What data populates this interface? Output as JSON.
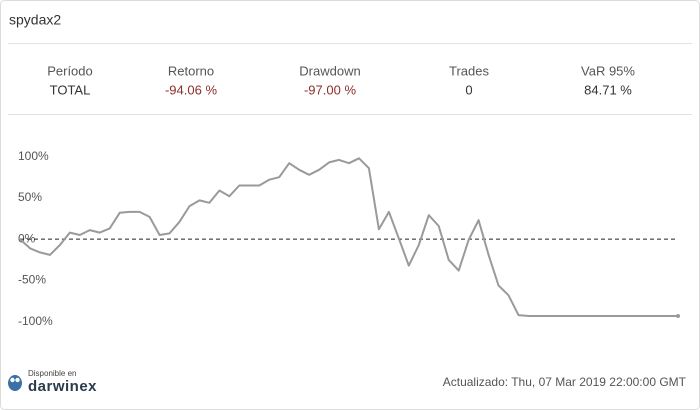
{
  "header": {
    "title": "spydax2"
  },
  "stats": {
    "columns": [
      "Período",
      "Retorno",
      "Drawdown",
      "Trades",
      "VaR 95%"
    ],
    "rows": [
      [
        "TOTAL",
        "-94.06 %",
        "-97.00 %",
        "0",
        "84.71 %"
      ]
    ]
  },
  "chart_data": {
    "type": "line",
    "color": "#9a9a9a",
    "values": [
      0,
      -11,
      -16,
      -19,
      -7,
      8,
      5,
      11,
      8,
      13,
      32,
      33,
      33,
      27,
      5,
      7,
      21,
      40,
      47,
      44,
      59,
      52,
      65,
      65,
      65,
      72,
      75,
      92,
      84,
      78,
      84,
      93,
      96,
      92,
      98,
      86,
      12,
      33,
      1,
      -32,
      -7,
      29,
      16,
      -25,
      -38,
      -1,
      23,
      -19,
      -56,
      -68,
      -92,
      -93,
      -93,
      -93,
      -93,
      -93,
      -93,
      -93,
      -93,
      -93,
      -93,
      -93,
      -93,
      -93,
      -93,
      -93,
      -93
    ],
    "ylim": [
      -110,
      108
    ],
    "yticks": [
      {
        "value": 100,
        "label": "100%"
      },
      {
        "value": 50,
        "label": "50%"
      },
      {
        "value": 0,
        "label": "0%"
      },
      {
        "value": -50,
        "label": "-50%"
      },
      {
        "value": -100,
        "label": "-100%"
      }
    ]
  },
  "footer": {
    "badge_caption": "Disponible en",
    "brand": "darwinex",
    "updated": "Actualizado: Thu, 07 Mar 2019 22:00:00 GMT"
  }
}
